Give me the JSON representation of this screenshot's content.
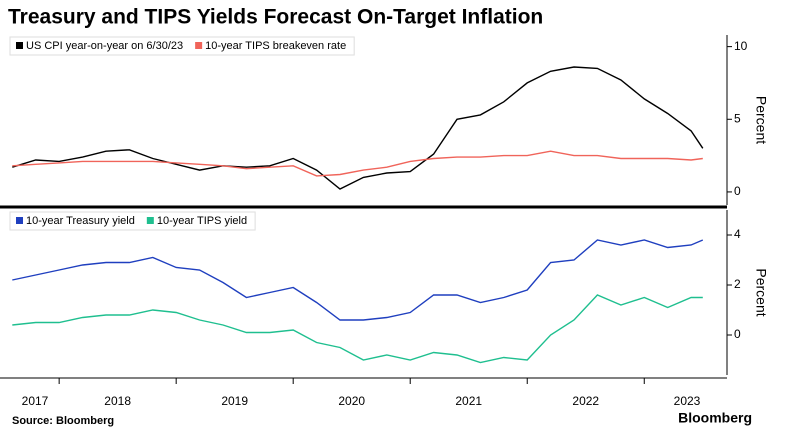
{
  "title": "Treasury and TIPS Yields Forecast On-Target Inflation",
  "source": "Source: Bloomberg",
  "brand": "Bloomberg",
  "chart_data": [
    {
      "type": "line",
      "ylabel": "Percent",
      "legend": "top-left",
      "xlim": [
        2017.58,
        2023.69
      ],
      "ylim": [
        -0.9,
        10.8
      ],
      "yticks": [
        0,
        5,
        10
      ],
      "x": [
        2017.6,
        2017.8,
        2018.0,
        2018.2,
        2018.4,
        2018.6,
        2018.8,
        2019.0,
        2019.2,
        2019.4,
        2019.6,
        2019.8,
        2020.0,
        2020.2,
        2020.4,
        2020.6,
        2020.8,
        2021.0,
        2021.2,
        2021.4,
        2021.6,
        2021.8,
        2022.0,
        2022.2,
        2022.4,
        2022.6,
        2022.8,
        2023.0,
        2023.2,
        2023.4,
        2023.5
      ],
      "series": [
        {
          "name": "US CPI year-on-year on 6/30/23",
          "color": "#000000",
          "values": [
            1.7,
            2.2,
            2.1,
            2.4,
            2.8,
            2.9,
            2.3,
            1.9,
            1.5,
            1.8,
            1.7,
            1.8,
            2.3,
            1.5,
            0.2,
            1.0,
            1.3,
            1.4,
            2.6,
            5.0,
            5.3,
            6.2,
            7.5,
            8.3,
            8.6,
            8.5,
            7.7,
            6.4,
            5.4,
            4.2,
            3.0
          ]
        },
        {
          "name": "10-year TIPS breakeven rate",
          "color": "#f0645a",
          "values": [
            1.8,
            1.9,
            2.0,
            2.1,
            2.1,
            2.1,
            2.1,
            2.0,
            1.9,
            1.8,
            1.6,
            1.7,
            1.8,
            1.1,
            1.2,
            1.5,
            1.7,
            2.1,
            2.3,
            2.4,
            2.4,
            2.5,
            2.5,
            2.8,
            2.5,
            2.5,
            2.3,
            2.3,
            2.3,
            2.2,
            2.3
          ]
        }
      ]
    },
    {
      "type": "line",
      "ylabel": "Percent",
      "legend": "top-left",
      "xlim": [
        2017.58,
        2023.69
      ],
      "ylim": [
        -1.6,
        5
      ],
      "yticks": [
        0,
        2,
        4
      ],
      "xticks": [
        2017,
        2018,
        2019,
        2020,
        2021,
        2022,
        2023
      ],
      "x": [
        2017.6,
        2017.8,
        2018.0,
        2018.2,
        2018.4,
        2018.6,
        2018.8,
        2019.0,
        2019.2,
        2019.4,
        2019.6,
        2019.8,
        2020.0,
        2020.2,
        2020.4,
        2020.6,
        2020.8,
        2021.0,
        2021.2,
        2021.4,
        2021.6,
        2021.8,
        2022.0,
        2022.2,
        2022.4,
        2022.6,
        2022.8,
        2023.0,
        2023.2,
        2023.4,
        2023.5
      ],
      "series": [
        {
          "name": "10-year Treasury yield",
          "color": "#1f3fbf",
          "values": [
            2.2,
            2.4,
            2.6,
            2.8,
            2.9,
            2.9,
            3.1,
            2.7,
            2.6,
            2.1,
            1.5,
            1.7,
            1.9,
            1.3,
            0.6,
            0.6,
            0.7,
            0.9,
            1.6,
            1.6,
            1.3,
            1.5,
            1.8,
            2.9,
            3.0,
            3.8,
            3.6,
            3.8,
            3.5,
            3.6,
            3.8
          ]
        },
        {
          "name": "10-year TIPS yield",
          "color": "#1fbf8f",
          "values": [
            0.4,
            0.5,
            0.5,
            0.7,
            0.8,
            0.8,
            1.0,
            0.9,
            0.6,
            0.4,
            0.1,
            0.1,
            0.2,
            -0.3,
            -0.5,
            -1.0,
            -0.8,
            -1.0,
            -0.7,
            -0.8,
            -1.1,
            -0.9,
            -1.0,
            0.0,
            0.6,
            1.6,
            1.2,
            1.5,
            1.1,
            1.5,
            1.5
          ]
        }
      ]
    }
  ]
}
